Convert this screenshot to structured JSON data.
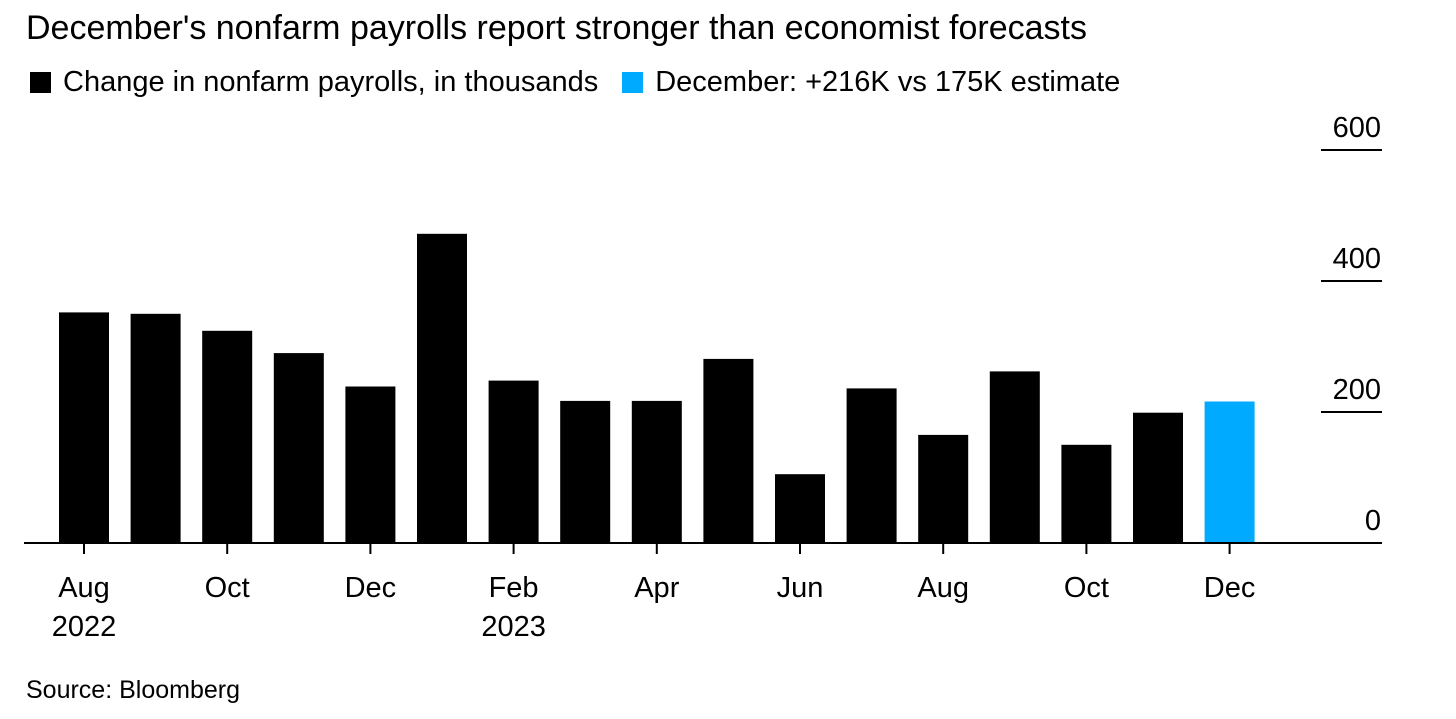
{
  "chart_data": {
    "type": "bar",
    "title": "December's nonfarm payrolls report stronger than economist forecasts",
    "legend": [
      {
        "label": "Change in nonfarm payrolls, in thousands",
        "color": "#000000"
      },
      {
        "label": "December: +216K vs 175K estimate",
        "color": "#00aaff"
      }
    ],
    "categories": [
      "Aug 2022",
      "Sep 2022",
      "Oct 2022",
      "Nov 2022",
      "Dec 2022",
      "Jan 2023",
      "Feb 2023",
      "Mar 2023",
      "Apr 2023",
      "May 2023",
      "Jun 2023",
      "Jul 2023",
      "Aug 2023",
      "Sep 2023",
      "Oct 2023",
      "Nov 2023",
      "Dec 2023"
    ],
    "values": [
      352,
      350,
      324,
      290,
      239,
      472,
      248,
      217,
      217,
      281,
      105,
      236,
      165,
      262,
      150,
      199,
      216
    ],
    "highlight_index": 16,
    "colors": {
      "default": "#000000",
      "highlight": "#00aaff"
    },
    "ylim": [
      0,
      600
    ],
    "y_ticks": [
      0,
      200,
      400,
      600
    ],
    "y_axis_position": "right",
    "x_tick_labels": [
      {
        "index": 0,
        "line1": "Aug",
        "line2": "2022"
      },
      {
        "index": 2,
        "line1": "Oct",
        "line2": ""
      },
      {
        "index": 4,
        "line1": "Dec",
        "line2": ""
      },
      {
        "index": 6,
        "line1": "Feb",
        "line2": "2023"
      },
      {
        "index": 8,
        "line1": "Apr",
        "line2": ""
      },
      {
        "index": 10,
        "line1": "Jun",
        "line2": ""
      },
      {
        "index": 12,
        "line1": "Aug",
        "line2": ""
      },
      {
        "index": 14,
        "line1": "Oct",
        "line2": ""
      },
      {
        "index": 16,
        "line1": "Dec",
        "line2": ""
      }
    ],
    "grid": false,
    "source": "Source: Bloomberg"
  }
}
